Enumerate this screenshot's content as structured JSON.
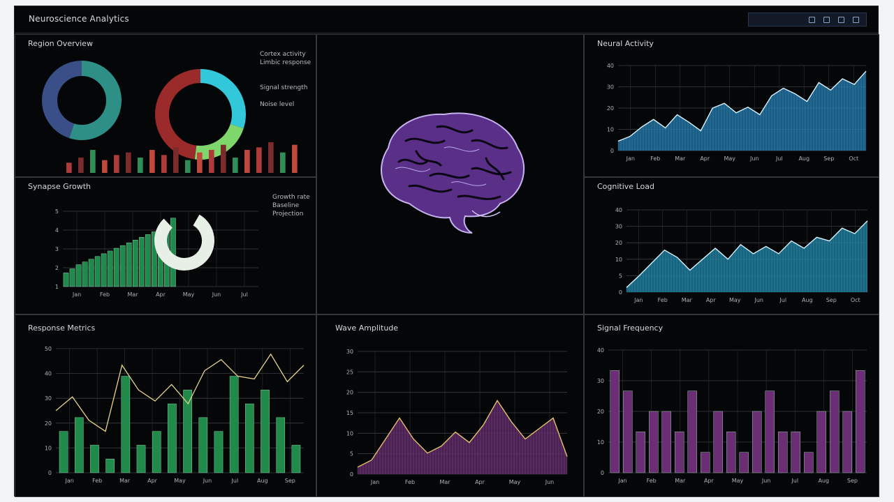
{
  "app": {
    "title": "Neuroscience Analytics"
  },
  "panels": {
    "top_left": {
      "title": "Region Overview",
      "legend": [
        "Cortex activity",
        "Limbic response",
        "Signal strength",
        "Noise level"
      ]
    },
    "mid_left": {
      "title": "Synapse Growth",
      "legend": [
        "Growth rate",
        "Baseline",
        "Projection"
      ]
    },
    "center": {
      "title": ""
    },
    "top_right": {
      "title": "Neural Activity"
    },
    "mid_right": {
      "title": "Cognitive Load"
    },
    "bottom_left": {
      "title": "Response Metrics"
    },
    "bottom_center": {
      "title": "Wave Amplitude"
    },
    "bottom_right": {
      "title": "Signal Frequency"
    }
  },
  "colors": {
    "blue": "#2a7bb0",
    "teal": "#1f7fa0",
    "green": "#1f8a4a",
    "purple": "#6b2d74",
    "brain": "#6a3aa0",
    "donut_red": "#9b2b2b",
    "donut_cyan": "#33c7da"
  },
  "chart_data": [
    {
      "id": "donut-a",
      "type": "pie",
      "values": [
        55,
        45
      ],
      "colors": [
        "#2e8f86",
        "#3a4f88"
      ]
    },
    {
      "id": "donut-b",
      "type": "pie",
      "values": [
        30,
        22,
        48
      ],
      "colors": [
        "#33c7da",
        "#7fd66a",
        "#9b2b2b"
      ]
    },
    {
      "id": "top-left-bars",
      "type": "bar",
      "values": [
        4,
        6,
        9,
        5,
        7,
        8,
        6,
        9,
        7,
        10,
        5,
        8,
        9,
        11,
        6,
        9,
        10,
        12,
        8,
        11
      ]
    },
    {
      "id": "synapse-growth",
      "type": "bar",
      "values": [
        1,
        1.3,
        1.6,
        1.8,
        2,
        2.2,
        2.4,
        2.6,
        2.8,
        3,
        3.2,
        3.4,
        3.6,
        3.8,
        4,
        4.2,
        4.5,
        5
      ],
      "ylim": [
        0,
        5.5
      ],
      "y_ticks": [
        "5",
        "4",
        "3",
        "2",
        "1"
      ],
      "x_ticks": [
        "Jan",
        "Feb",
        "Mar",
        "Apr",
        "May",
        "Jun",
        "Jul"
      ]
    },
    {
      "id": "neural-activity",
      "type": "area",
      "values": [
        1,
        1.5,
        2.5,
        3.3,
        2.4,
        3.8,
        3.0,
        2.1,
        4.5,
        5.0,
        4.0,
        4.6,
        3.8,
        5.8,
        6.6,
        6.0,
        5.2,
        7.2,
        6.4,
        7.6,
        7.0,
        8.4
      ],
      "ylim": [
        0,
        9
      ],
      "y_ticks": [
        "40",
        "30",
        "20",
        "10",
        "0"
      ],
      "x_ticks": [
        "Jan",
        "Feb",
        "Mar",
        "Apr",
        "May",
        "Jun",
        "Jul",
        "Aug",
        "Sep",
        "Oct"
      ]
    },
    {
      "id": "cognitive-load",
      "type": "area",
      "values": [
        0.5,
        1.8,
        3.2,
        4.6,
        3.8,
        2.4,
        3.6,
        4.8,
        3.6,
        5.2,
        4.2,
        5.0,
        4.2,
        5.6,
        4.8,
        6.0,
        5.6,
        7.0,
        6.4,
        7.8
      ],
      "ylim": [
        0,
        9
      ],
      "y_ticks": [
        "40",
        "30",
        "20",
        "10",
        "5",
        "0"
      ],
      "x_ticks": [
        "Jan",
        "Feb",
        "Mar",
        "Apr",
        "May",
        "Jun",
        "Jul",
        "Aug",
        "Sep",
        "Oct"
      ]
    },
    {
      "id": "response-metrics",
      "type": "bar",
      "values": [
        3,
        4,
        2,
        1,
        7,
        2,
        3,
        5,
        6,
        4,
        3,
        7,
        5,
        6,
        4,
        2
      ],
      "line": [
        4.5,
        5.5,
        3.8,
        3.0,
        7.8,
        6.0,
        5.2,
        6.4,
        5.0,
        7.4,
        8.2,
        7.0,
        6.8,
        8.6,
        6.6,
        7.8
      ],
      "ylim": [
        0,
        9
      ],
      "y_ticks": [
        "50",
        "40",
        "30",
        "20",
        "10",
        "0"
      ],
      "x_ticks": [
        "Jan",
        "Feb",
        "Mar",
        "Apr",
        "May",
        "Jun",
        "Jul",
        "Aug",
        "Sep"
      ]
    },
    {
      "id": "wave-amplitude",
      "type": "area",
      "values": [
        0.4,
        0.8,
        2.0,
        3.2,
        2.0,
        1.2,
        1.6,
        2.4,
        1.8,
        2.8,
        4.2,
        3.0,
        2.0,
        2.6,
        3.2,
        1.0
      ],
      "ylim": [
        0,
        7
      ],
      "y_ticks": [
        "30",
        "25",
        "20",
        "15",
        "10",
        "5",
        "0"
      ],
      "x_ticks": [
        "Jan",
        "Feb",
        "Mar",
        "Apr",
        "May",
        "Jun"
      ]
    },
    {
      "id": "signal-frequency",
      "type": "bar",
      "values": [
        5,
        4,
        2,
        3,
        3,
        2,
        4,
        1,
        3,
        2,
        1,
        3,
        4,
        2,
        2,
        1,
        3,
        4,
        3,
        5
      ],
      "ylim": [
        0,
        6
      ],
      "y_ticks": [
        "40",
        "30",
        "20",
        "10",
        "0"
      ],
      "x_ticks": [
        "Jan",
        "Feb",
        "Mar",
        "Apr",
        "May",
        "Jun",
        "Jul",
        "Aug",
        "Sep"
      ]
    }
  ]
}
